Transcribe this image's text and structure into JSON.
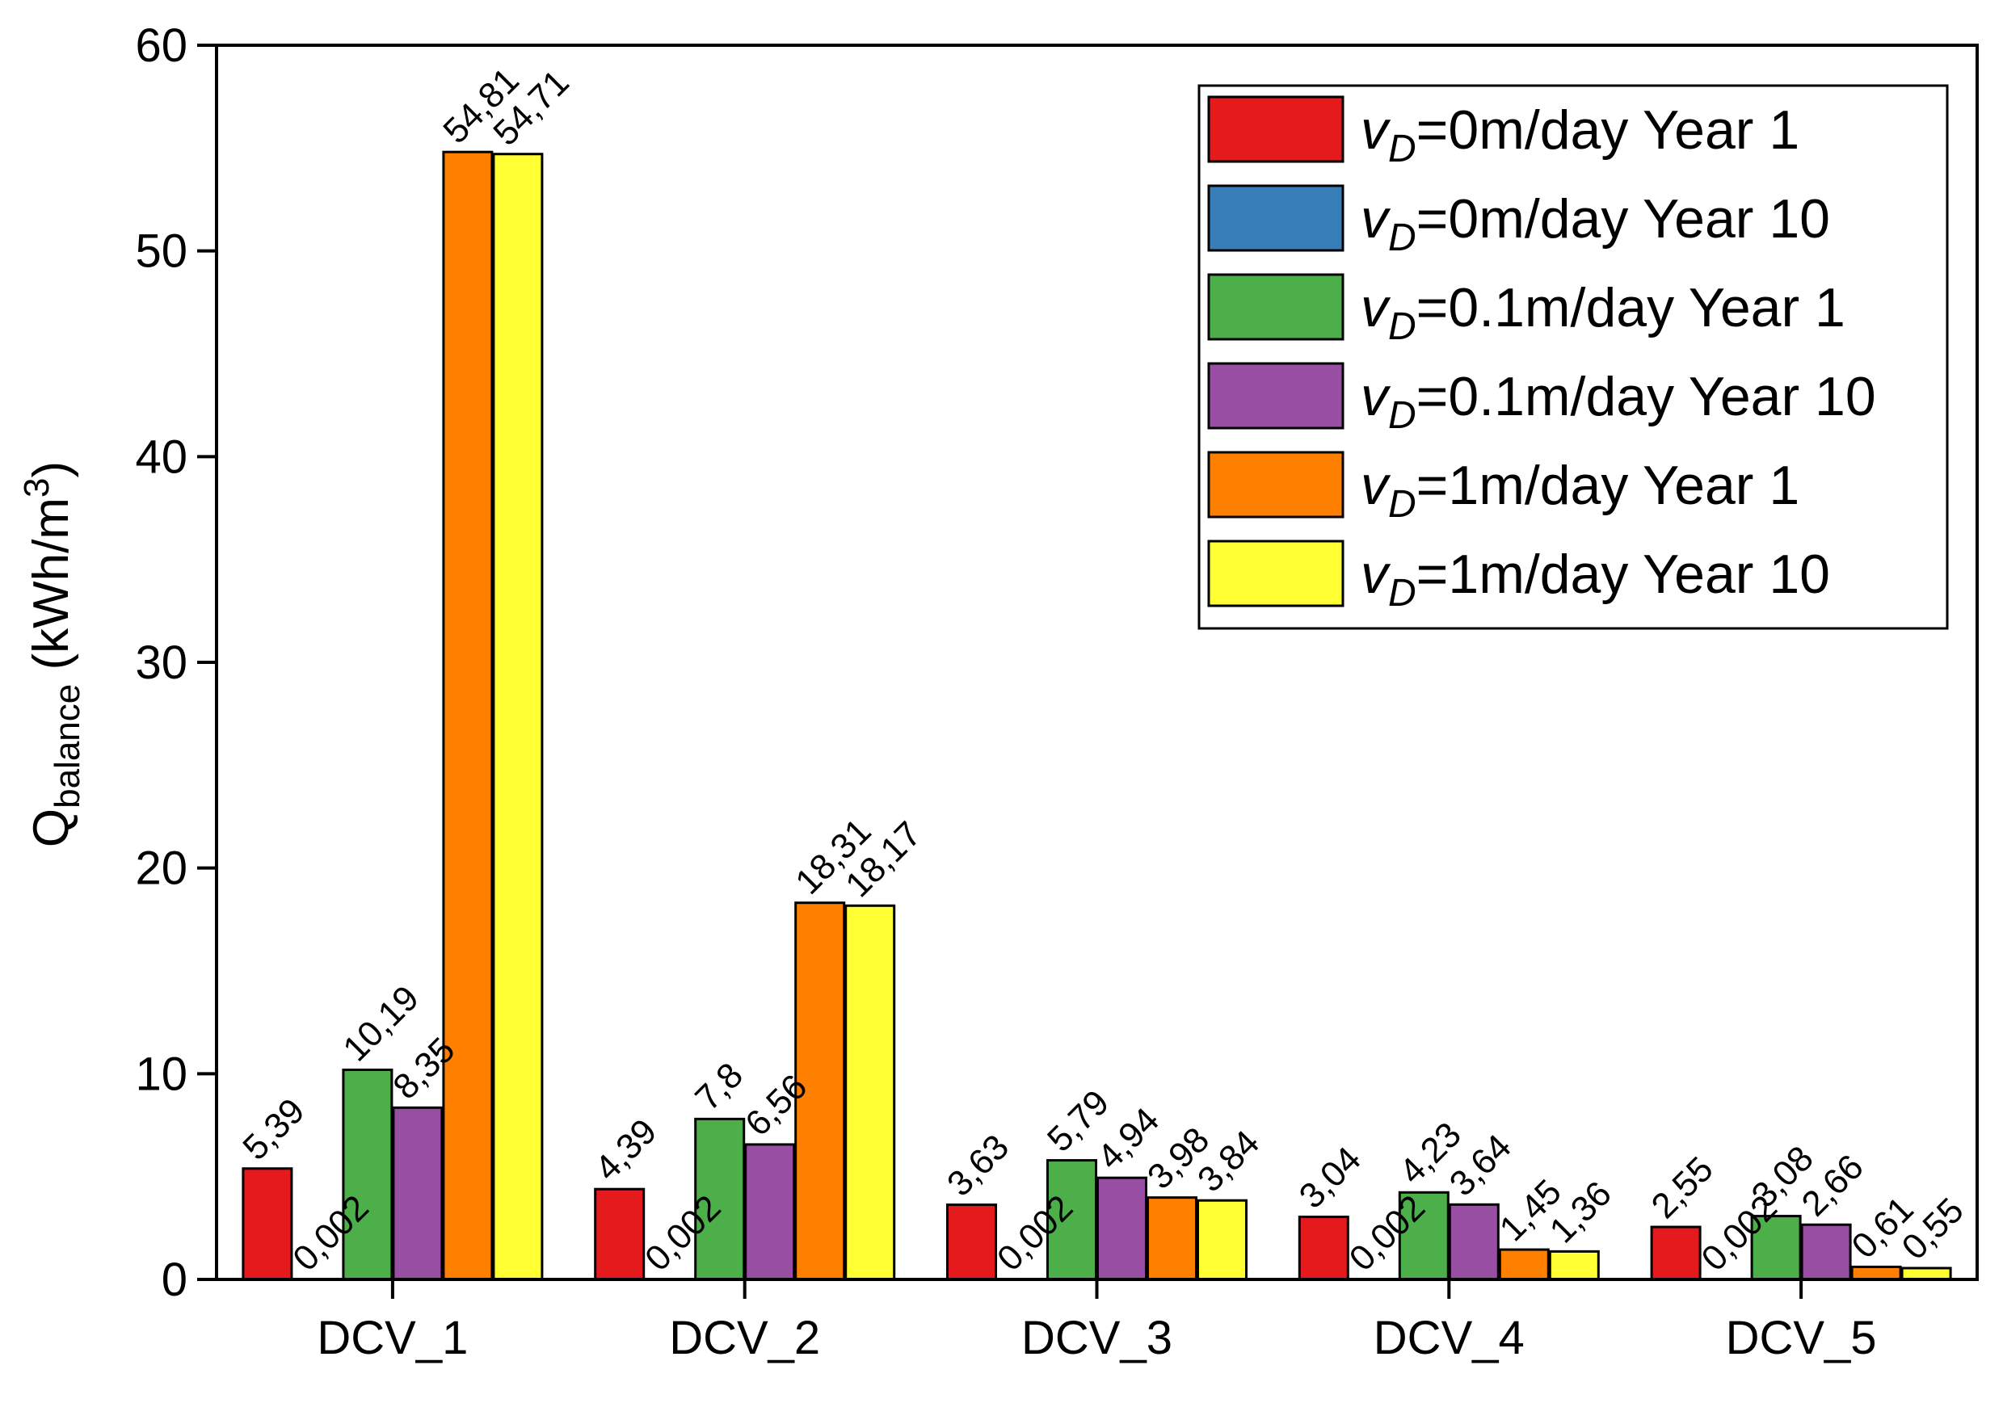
{
  "chart_data": {
    "type": "bar",
    "categories": [
      "DCV_1",
      "DCV_2",
      "DCV_3",
      "DCV_4",
      "DCV_5"
    ],
    "ylabel": {
      "main": "Q",
      "sub": "balance",
      "unit_pre": " (kWh/m",
      "unit_sup": "3",
      "unit_post": ")"
    },
    "ylim": [
      0,
      60
    ],
    "yticks": [
      0,
      10,
      20,
      30,
      40,
      50,
      60
    ],
    "legend_position": "top-right",
    "series": [
      {
        "name": "Year 1",
        "legend_v": "v",
        "legend_sub": "D",
        "legend_rest": "=0m/day Year 1",
        "color": "#e41a1c",
        "values": [
          5.39,
          4.39,
          3.63,
          3.04,
          2.55
        ],
        "labels": [
          "5,39",
          "4,39",
          "3,63",
          "3,04",
          "2,55"
        ]
      },
      {
        "name": "Year 10",
        "legend_v": "v",
        "legend_sub": "D",
        "legend_rest": "=0m/day Year 10",
        "color": "#377eb8",
        "values": [
          0.002,
          0.002,
          0.002,
          0.002,
          0.002
        ],
        "labels": [
          "0,002",
          "0,002",
          "0,002",
          "0,002",
          "0,002"
        ]
      },
      {
        "name": "Year 1",
        "legend_v": "v",
        "legend_sub": "D",
        "legend_rest": "=0.1m/day Year 1",
        "color": "#4daf4a",
        "values": [
          10.19,
          7.8,
          5.79,
          4.23,
          3.08
        ],
        "labels": [
          "10,19",
          "7,8",
          "5,79",
          "4,23",
          "3,08"
        ]
      },
      {
        "name": "Year 10",
        "legend_v": "v",
        "legend_sub": "D",
        "legend_rest": "=0.1m/day Year 10",
        "color": "#984ea3",
        "values": [
          8.35,
          6.56,
          4.94,
          3.64,
          2.66
        ],
        "labels": [
          "8,35",
          "6,56",
          "4,94",
          "3,64",
          "2,66"
        ]
      },
      {
        "name": "Year 1",
        "legend_v": "v",
        "legend_sub": "D",
        "legend_rest": "=1m/day Year 1",
        "color": "#ff7f00",
        "values": [
          54.81,
          18.31,
          3.98,
          1.45,
          0.61
        ],
        "labels": [
          "54,81",
          "18,31",
          "3,98",
          "1,45",
          "0,61"
        ]
      },
      {
        "name": "Year 10",
        "legend_v": "v",
        "legend_sub": "D",
        "legend_rest": "=1m/day Year 10",
        "color": "#ffff33",
        "values": [
          54.71,
          18.17,
          3.84,
          1.36,
          0.55
        ],
        "labels": [
          "54,71",
          "18,17",
          "3,84",
          "1,36",
          "0,55"
        ]
      }
    ]
  }
}
